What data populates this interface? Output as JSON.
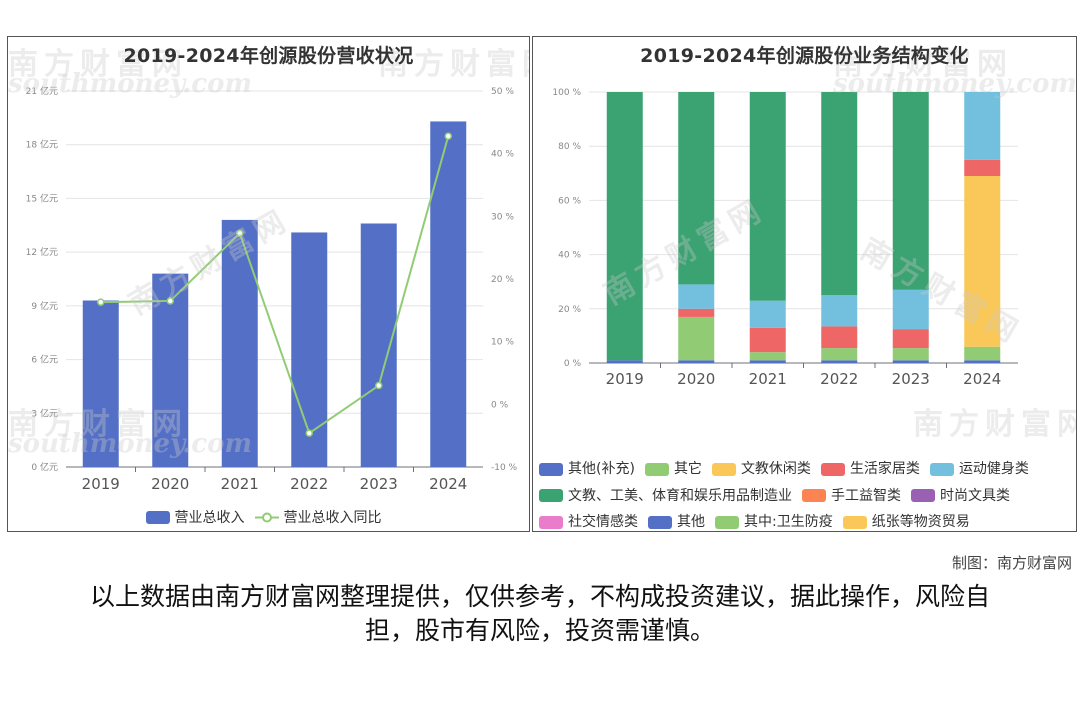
{
  "watermark": {
    "cn": "南方财富网",
    "en": "southmoney.com"
  },
  "credit": "制图：南方财富网",
  "disclaimer": "以上数据由南方财富网整理提供，仅供参考，不构成投资建议，据此操作，风险自担，股市有风险，投资需谨慎。",
  "chart_data": [
    {
      "type": "bar",
      "title": "2019-2024年创源股份营收状况",
      "categories": [
        "2019",
        "2020",
        "2021",
        "2022",
        "2023",
        "2024"
      ],
      "series": [
        {
          "name": "营业总收入",
          "type": "bar",
          "axis": "left",
          "color": "#5470c6",
          "values": [
            9.3,
            10.8,
            13.8,
            13.1,
            13.6,
            19.3
          ]
        },
        {
          "name": "营业总收入同比",
          "type": "line",
          "axis": "right",
          "color": "#91cc75",
          "values": [
            16.3,
            16.5,
            27.3,
            -4.6,
            3.0,
            42.8
          ]
        }
      ],
      "left_axis": {
        "min": 0,
        "max": 21,
        "ticks": [
          0,
          3,
          6,
          9,
          12,
          15,
          18,
          21
        ],
        "unit": "亿元",
        "tick_labels": [
          "0 亿元",
          "3 亿元",
          "6 亿元",
          "9 亿元",
          "12 亿元",
          "15 亿元",
          "18 亿元",
          "21 亿元"
        ]
      },
      "right_axis": {
        "min": -10,
        "max": 50,
        "ticks": [
          -10,
          0,
          10,
          20,
          30,
          40,
          50
        ],
        "unit": "%",
        "tick_labels": [
          "-10 %",
          "0 %",
          "10 %",
          "20 %",
          "30 %",
          "40 %",
          "50 %"
        ]
      },
      "grid": true,
      "legend_position": "bottom"
    },
    {
      "type": "bar",
      "stacked": true,
      "title": "2019-2024年创源股份业务结构变化",
      "categories": [
        "2019",
        "2020",
        "2021",
        "2022",
        "2023",
        "2024"
      ],
      "y_axis": {
        "min": 0,
        "max": 100,
        "ticks": [
          0,
          20,
          40,
          60,
          80,
          100
        ],
        "tick_labels": [
          "0 %",
          "20 %",
          "40 %",
          "60 %",
          "80 %",
          "100 %"
        ]
      },
      "series": [
        {
          "name": "其他(补充)",
          "color": "#5470c6",
          "values": [
            1,
            1,
            1,
            1,
            1,
            1
          ]
        },
        {
          "name": "其它",
          "color": "#91cc75",
          "values": [
            0,
            16,
            3,
            4.5,
            4.5,
            5
          ]
        },
        {
          "name": "文教休闲类",
          "color": "#fac858",
          "values": [
            0,
            0,
            0,
            0,
            0,
            63
          ]
        },
        {
          "name": "生活家居类",
          "color": "#ee6666",
          "values": [
            0,
            3,
            9,
            8,
            7,
            6
          ]
        },
        {
          "name": "运动健身类",
          "color": "#73c0de",
          "values": [
            0,
            9,
            10,
            11.5,
            14.5,
            25
          ]
        },
        {
          "name": "文教、工美、体育和娱乐用品制造业",
          "color": "#3ba272",
          "values": [
            99,
            71,
            77,
            75,
            73,
            0
          ]
        },
        {
          "name": "手工益智类",
          "color": "#fc8452",
          "values": [
            0,
            0,
            0,
            0,
            0,
            0
          ]
        },
        {
          "name": "时尚文具类",
          "color": "#9a60b4",
          "values": [
            0,
            0,
            0,
            0,
            0,
            0
          ]
        },
        {
          "name": "社交情感类",
          "color": "#ea7ccc",
          "values": [
            0,
            0,
            0,
            0,
            0,
            0
          ]
        },
        {
          "name": "其他",
          "color": "#5470c6",
          "values": [
            0,
            0,
            0,
            0,
            0,
            0
          ]
        },
        {
          "name": "其中:卫生防疫",
          "color": "#91cc75",
          "values": [
            0,
            0,
            0,
            0,
            0,
            0
          ]
        },
        {
          "name": "纸张等物资贸易",
          "color": "#fac858",
          "values": [
            0,
            0,
            0,
            0,
            0,
            0
          ]
        }
      ],
      "grid": true,
      "legend_position": "bottom"
    }
  ]
}
